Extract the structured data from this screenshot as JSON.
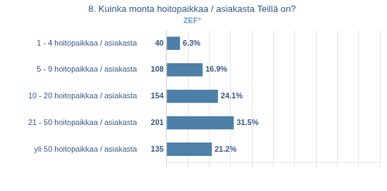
{
  "chart_data": {
    "type": "bar",
    "orientation": "horizontal",
    "title": "8. Kuinka monta hoitopaikkaa / asiakasta Teillä on?",
    "annotations": [
      "ZEF°"
    ],
    "categories": [
      "1 - 4 hoitopaikkaa / asiakasta",
      "5 - 9 hoitopaikkaa / asiakasta",
      "10 - 20 hoitopaikkaa / asiakasta",
      "21 - 50 hoitopaikkaa / asiakasta",
      "yli 50 hoitopaikkaa / asiakasta"
    ],
    "values": [
      6.3,
      16.9,
      24.1,
      31.5,
      21.2
    ],
    "value_labels": [
      "6.3%",
      "16.9%",
      "24.1%",
      "31.5%",
      "21.2%"
    ],
    "counts": [
      40,
      108,
      154,
      201,
      135
    ],
    "color": "#4d7fa8",
    "xlim": [
      0,
      100
    ],
    "xticks": [
      0,
      10,
      20,
      30,
      40,
      50,
      60,
      70,
      80,
      90,
      100
    ],
    "grid": true,
    "data_labels": true,
    "tick_labels": "y"
  }
}
